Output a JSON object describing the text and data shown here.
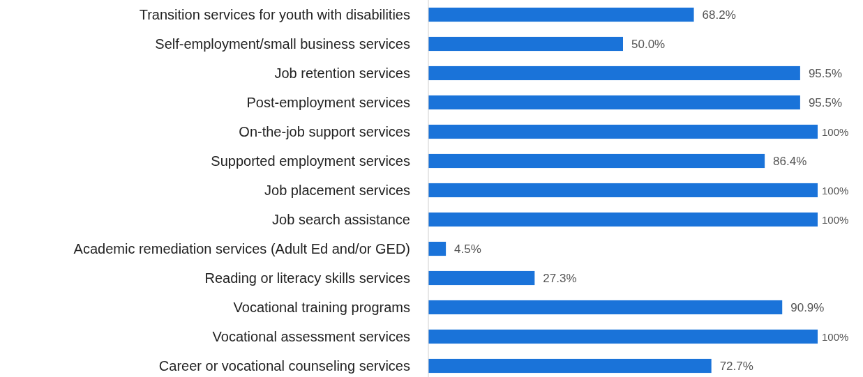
{
  "chart_data": {
    "type": "bar",
    "orientation": "horizontal",
    "categories": [
      "Transition services for youth with disabilities",
      "Self-employment/small business services",
      "Job retention services",
      "Post-employment services",
      "On-the-job support services",
      "Supported employment services",
      "Job placement services",
      "Job search assistance",
      "Academic remediation services (Adult Ed and/or GED)",
      "Reading or literacy skills services",
      "Vocational training programs",
      "Vocational assessment services",
      "Career or vocational counseling services"
    ],
    "values": [
      68.2,
      50.0,
      95.5,
      95.5,
      100,
      86.4,
      100,
      100,
      4.5,
      27.3,
      90.9,
      100,
      72.7
    ],
    "value_labels": [
      "68.2%",
      "50.0%",
      "95.5%",
      "95.5%",
      "100%",
      "86.4%",
      "100%",
      "100%",
      "4.5%",
      "27.3%",
      "90.9%",
      "100%",
      "72.7%"
    ],
    "color": "#1a73d9"
  }
}
